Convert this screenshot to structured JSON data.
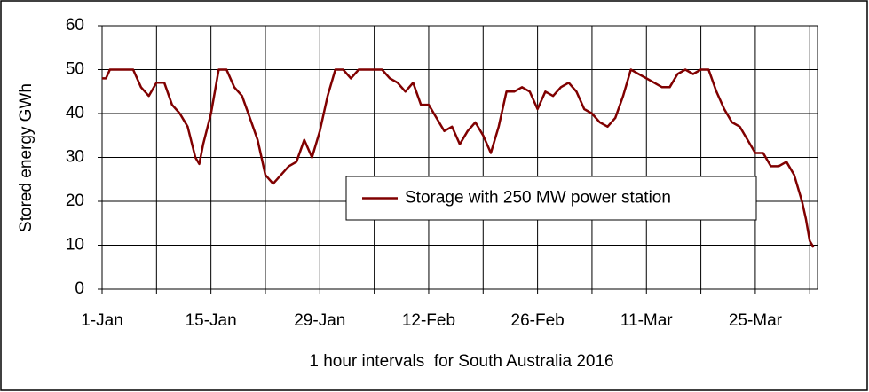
{
  "chart_data": {
    "type": "line",
    "x_label": "1 hour intervals  for South Australia 2016",
    "y_label": "Stored energy GWh",
    "x": [
      0,
      0.5,
      1,
      2,
      3,
      4,
      5,
      6,
      7,
      8,
      9,
      10,
      11,
      12,
      12.5,
      13,
      14,
      15,
      16,
      17,
      18,
      19,
      20,
      21,
      22,
      23,
      24,
      25,
      26,
      27,
      28,
      29,
      30,
      31,
      32,
      33,
      34,
      35,
      36,
      37,
      38,
      39,
      40,
      41,
      42,
      43,
      44,
      45,
      46,
      47,
      48,
      49,
      50,
      51,
      52,
      53,
      54,
      55,
      56,
      57,
      58,
      59,
      60,
      61,
      62,
      63,
      64,
      65,
      66,
      67,
      68,
      69,
      70,
      71,
      72,
      73,
      74,
      75,
      76,
      77,
      78,
      79,
      80,
      81,
      82,
      83,
      84,
      85,
      86,
      87,
      88,
      89,
      90,
      90.5,
      91,
      91.5
    ],
    "series": [
      {
        "name": "Storage with 250 MW power station",
        "color": "#800000",
        "values": [
          48,
          48,
          50,
          50,
          50,
          50,
          46,
          44,
          47,
          47,
          42,
          40,
          37,
          30,
          28.5,
          33,
          40,
          50,
          50,
          46,
          44,
          39,
          34,
          26,
          24,
          26,
          28,
          29,
          34,
          30,
          36,
          44,
          50,
          50,
          48,
          50,
          50,
          50,
          50,
          48,
          47,
          45,
          47,
          42,
          42,
          39,
          36,
          37,
          33,
          36,
          38,
          35,
          31,
          37,
          45,
          45,
          46,
          45,
          41,
          45,
          44,
          46,
          47,
          45,
          41,
          40,
          38,
          37,
          39,
          44,
          50,
          49,
          48,
          47,
          46,
          46,
          49,
          50,
          49,
          50,
          50,
          45,
          41,
          38,
          37,
          34,
          31,
          31,
          28,
          28,
          29,
          26,
          20,
          16,
          11,
          9.5
        ]
      }
    ],
    "xlim": [
      0,
      92
    ],
    "xticks": [
      {
        "value": 0,
        "label": "1-Jan"
      },
      {
        "value": 7,
        "label": null
      },
      {
        "value": 14,
        "label": "15-Jan"
      },
      {
        "value": 21,
        "label": null
      },
      {
        "value": 28,
        "label": "29-Jan"
      },
      {
        "value": 35,
        "label": null
      },
      {
        "value": 42,
        "label": "12-Feb"
      },
      {
        "value": 49,
        "label": null
      },
      {
        "value": 56,
        "label": "26-Feb"
      },
      {
        "value": 63,
        "label": null
      },
      {
        "value": 70,
        "label": "11-Mar"
      },
      {
        "value": 77,
        "label": null
      },
      {
        "value": 84,
        "label": "25-Mar"
      },
      {
        "value": 91,
        "label": null
      }
    ],
    "ylim": [
      0,
      60
    ],
    "yticks": [
      0,
      10,
      20,
      30,
      40,
      50,
      60
    ],
    "grid": true,
    "legend_loc": "center right"
  }
}
